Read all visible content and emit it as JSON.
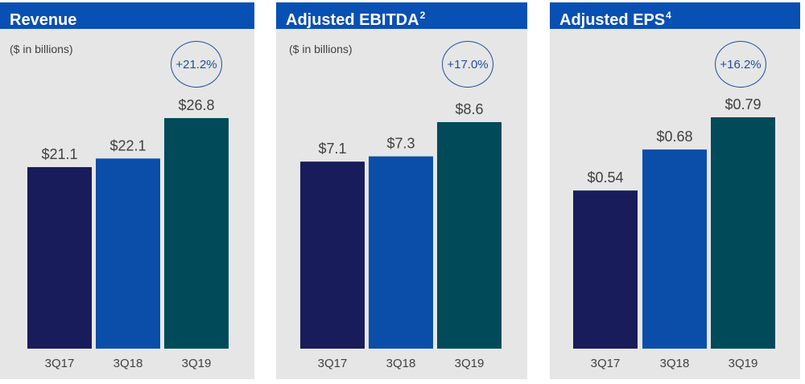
{
  "chart_data": [
    {
      "type": "bar",
      "title": "Revenue",
      "title_superscript": "",
      "subtitle": "($ in billions)",
      "growth_label": "+21.2%",
      "categories": [
        "3Q17",
        "3Q18",
        "3Q19"
      ],
      "values": [
        21.1,
        22.1,
        26.8
      ],
      "value_labels": [
        "$21.1",
        "$22.1",
        "$26.8"
      ],
      "xlabel": "",
      "ylabel": "",
      "grid": false
    },
    {
      "type": "bar",
      "title": "Adjusted EBITDA",
      "title_superscript": "2",
      "subtitle": "($ in billions)",
      "growth_label": "+17.0%",
      "categories": [
        "3Q17",
        "3Q18",
        "3Q19"
      ],
      "values": [
        7.1,
        7.3,
        8.6
      ],
      "value_labels": [
        "$7.1",
        "$7.3",
        "$8.6"
      ],
      "xlabel": "",
      "ylabel": "",
      "grid": false
    },
    {
      "type": "bar",
      "title": "Adjusted EPS",
      "title_superscript": "4",
      "subtitle": "",
      "growth_label": "+16.2%",
      "categories": [
        "3Q17",
        "3Q18",
        "3Q19"
      ],
      "values": [
        0.54,
        0.68,
        0.79
      ],
      "value_labels": [
        "$0.54",
        "$0.68",
        "$0.79"
      ],
      "xlabel": "",
      "ylabel": "",
      "grid": false
    }
  ],
  "colors": {
    "header": "#0950b4",
    "panel_bg": "#e6e6e6",
    "bars": [
      "#181c5a",
      "#0a4eaa",
      "#004a5a"
    ],
    "badge": "#1f4e9c",
    "text": "#404040"
  }
}
